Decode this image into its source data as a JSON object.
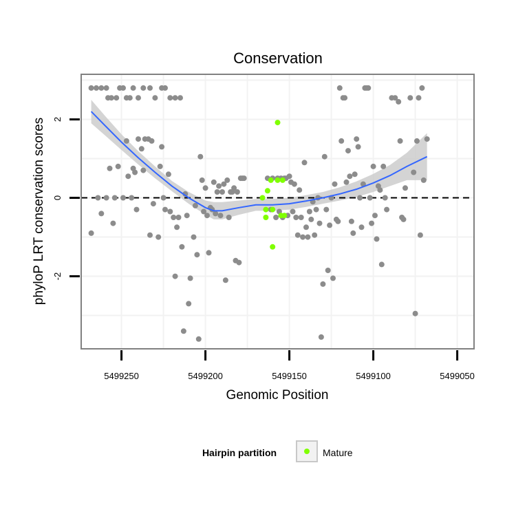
{
  "chart_data": {
    "type": "scatter",
    "title": "Conservation",
    "xlabel": "Genomic Position",
    "ylabel": "phyloP LRT conservation scores",
    "x_reversed": true,
    "xlim": [
      5499274,
      5499040
    ],
    "ylim": [
      -3.85,
      3.15
    ],
    "x_ticks": [
      5499250,
      5499200,
      5499150,
      5499100,
      5499050
    ],
    "x_tick_labels": [
      "5499250",
      "5499200",
      "5499150",
      "5499100",
      "5499050"
    ],
    "y_ticks": [
      -2,
      0,
      2
    ],
    "y_tick_labels": [
      "-2",
      "0",
      "2"
    ],
    "grid": true,
    "reference_line": {
      "y": 0,
      "style": "dashed",
      "color": "#000000"
    },
    "legend": {
      "title": "Hairpin partition",
      "position": "bottom",
      "entries": [
        "Mature"
      ]
    },
    "colors": {
      "other": "#8c8c8c",
      "mature": "#80ff00",
      "smooth": "#3366ff",
      "ribbon": "#cccccc"
    },
    "series": [
      {
        "points": [
          [
            5499268,
            2.8
          ],
          [
            5499265,
            2.8
          ],
          [
            5499262,
            2.8
          ],
          [
            5499259,
            2.8
          ],
          [
            5499258,
            2.55
          ],
          [
            5499256,
            2.55
          ],
          [
            5499253,
            2.55
          ],
          [
            5499251,
            2.8
          ],
          [
            5499249,
            2.8
          ],
          [
            5499247,
            2.55
          ],
          [
            5499245,
            2.55
          ],
          [
            5499243,
            2.8
          ],
          [
            5499240,
            2.55
          ],
          [
            5499237,
            2.8
          ],
          [
            5499233,
            2.8
          ],
          [
            5499230,
            2.55
          ],
          [
            5499226,
            2.8
          ],
          [
            5499224,
            2.8
          ],
          [
            5499221,
            2.55
          ],
          [
            5499218,
            2.55
          ],
          [
            5499215,
            2.55
          ],
          [
            5499268,
            -0.9
          ],
          [
            5499264,
            0.0
          ],
          [
            5499262,
            -0.4
          ],
          [
            5499259,
            0.0
          ],
          [
            5499257,
            0.75
          ],
          [
            5499255,
            -0.65
          ],
          [
            5499254,
            0.0
          ],
          [
            5499252,
            0.8
          ],
          [
            5499249,
            0.0
          ],
          [
            5499247,
            1.45
          ],
          [
            5499246,
            0.55
          ],
          [
            5499244,
            0.0
          ],
          [
            5499243,
            0.75
          ],
          [
            5499242,
            0.65
          ],
          [
            5499241,
            -0.3
          ],
          [
            5499240,
            1.5
          ],
          [
            5499238,
            1.25
          ],
          [
            5499237,
            0.7
          ],
          [
            5499236,
            1.5
          ],
          [
            5499234,
            1.5
          ],
          [
            5499233,
            -0.95
          ],
          [
            5499232,
            1.45
          ],
          [
            5499231,
            -0.15
          ],
          [
            5499228,
            -1.0
          ],
          [
            5499227,
            0.8
          ],
          [
            5499226,
            1.3
          ],
          [
            5499225,
            0.0
          ],
          [
            5499224,
            -0.3
          ],
          [
            5499222,
            0.6
          ],
          [
            5499221,
            -0.35
          ],
          [
            5499219,
            -0.5
          ],
          [
            5499218,
            -2.0
          ],
          [
            5499217,
            -0.75
          ],
          [
            5499216,
            -0.5
          ],
          [
            5499214,
            -1.25
          ],
          [
            5499213,
            -3.4
          ],
          [
            5499212,
            0.1
          ],
          [
            5499211,
            -0.45
          ],
          [
            5499210,
            -2.7
          ],
          [
            5499209,
            -2.05
          ],
          [
            5499207,
            -1.0
          ],
          [
            5499206,
            -0.2
          ],
          [
            5499205,
            -1.45
          ],
          [
            5499204,
            -3.6
          ],
          [
            5499203,
            1.05
          ],
          [
            5499202,
            0.45
          ],
          [
            5499201,
            -0.35
          ],
          [
            5499200,
            0.25
          ],
          [
            5499199,
            -0.45
          ],
          [
            5499198,
            -1.4
          ],
          [
            5499197,
            -0.25
          ],
          [
            5499196,
            -0.3
          ],
          [
            5499195,
            0.4
          ],
          [
            5499194,
            -0.4
          ],
          [
            5499193,
            0.15
          ],
          [
            5499192,
            0.3
          ],
          [
            5499191,
            -0.45
          ],
          [
            5499190,
            0.15
          ],
          [
            5499189,
            0.35
          ],
          [
            5499188,
            -2.1
          ],
          [
            5499187,
            0.45
          ],
          [
            5499186,
            -0.5
          ],
          [
            5499185,
            0.15
          ],
          [
            5499184,
            0.15
          ],
          [
            5499183,
            0.25
          ],
          [
            5499182,
            -1.6
          ],
          [
            5499181,
            0.15
          ],
          [
            5499180,
            -1.65
          ],
          [
            5499179,
            0.5
          ],
          [
            5499178,
            0.5
          ],
          [
            5499177,
            0.5
          ],
          [
            5499163,
            0.5
          ],
          [
            5499161,
            -0.3
          ],
          [
            5499160,
            0.5
          ],
          [
            5499158,
            -0.5
          ],
          [
            5499157,
            0.5
          ],
          [
            5499156,
            -0.35
          ],
          [
            5499155,
            0.5
          ],
          [
            5499154,
            -0.5
          ],
          [
            5499153,
            0.5
          ],
          [
            5499152,
            0.5
          ],
          [
            5499151,
            -0.45
          ],
          [
            5499150,
            0.55
          ],
          [
            5499149,
            0.4
          ],
          [
            5499148,
            -0.35
          ],
          [
            5499147,
            0.35
          ],
          [
            5499146,
            -0.5
          ],
          [
            5499145,
            -0.95
          ],
          [
            5499144,
            0.2
          ],
          [
            5499143,
            -0.5
          ],
          [
            5499142,
            -1.0
          ],
          [
            5499141,
            0.9
          ],
          [
            5499140,
            -0.75
          ],
          [
            5499139,
            -1.0
          ],
          [
            5499138,
            -0.35
          ],
          [
            5499137,
            -0.55
          ],
          [
            5499136,
            -0.1
          ],
          [
            5499135,
            -0.95
          ],
          [
            5499134,
            -0.3
          ],
          [
            5499133,
            0.0
          ],
          [
            5499132,
            -0.65
          ],
          [
            5499131,
            -3.55
          ],
          [
            5499130,
            -2.2
          ],
          [
            5499129,
            1.05
          ],
          [
            5499128,
            -0.3
          ],
          [
            5499127,
            -1.85
          ],
          [
            5499126,
            -0.7
          ],
          [
            5499125,
            0.0
          ],
          [
            5499124,
            -2.05
          ],
          [
            5499123,
            0.35
          ],
          [
            5499122,
            -0.55
          ],
          [
            5499121,
            -0.6
          ],
          [
            5499120,
            2.8
          ],
          [
            5499119,
            1.45
          ],
          [
            5499118,
            2.55
          ],
          [
            5499117,
            2.55
          ],
          [
            5499116,
            0.4
          ],
          [
            5499115,
            1.2
          ],
          [
            5499114,
            0.55
          ],
          [
            5499113,
            -0.6
          ],
          [
            5499112,
            -0.9
          ],
          [
            5499111,
            0.6
          ],
          [
            5499110,
            1.5
          ],
          [
            5499109,
            1.3
          ],
          [
            5499108,
            0.0
          ],
          [
            5499107,
            -0.75
          ],
          [
            5499106,
            0.35
          ],
          [
            5499105,
            2.8
          ],
          [
            5499104,
            2.8
          ],
          [
            5499103,
            2.8
          ],
          [
            5499102,
            0.0
          ],
          [
            5499101,
            -0.65
          ],
          [
            5499100,
            0.8
          ],
          [
            5499099,
            -0.45
          ],
          [
            5499098,
            -1.05
          ],
          [
            5499097,
            0.3
          ],
          [
            5499096,
            0.2
          ],
          [
            5499095,
            -1.7
          ],
          [
            5499094,
            0.8
          ],
          [
            5499093,
            0.0
          ],
          [
            5499092,
            -0.3
          ],
          [
            5499089,
            2.55
          ],
          [
            5499087,
            2.55
          ],
          [
            5499085,
            2.45
          ],
          [
            5499084,
            1.45
          ],
          [
            5499083,
            -0.5
          ],
          [
            5499082,
            -0.55
          ],
          [
            5499081,
            0.25
          ],
          [
            5499078,
            2.55
          ],
          [
            5499076,
            0.65
          ],
          [
            5499075,
            -2.95
          ],
          [
            5499074,
            1.45
          ],
          [
            5499073,
            2.55
          ],
          [
            5499072,
            -0.95
          ],
          [
            5499071,
            2.8
          ],
          [
            5499070,
            0.45
          ],
          [
            5499068,
            1.5
          ]
        ]
      },
      {
        "name": "Mature",
        "points": [
          [
            5499157,
            1.92
          ],
          [
            5499161,
            0.45
          ],
          [
            5499157,
            0.45
          ],
          [
            5499154,
            0.45
          ],
          [
            5499163,
            0.18
          ],
          [
            5499166,
            0.0
          ],
          [
            5499160,
            -0.3
          ],
          [
            5499164,
            -0.3
          ],
          [
            5499155,
            -0.45
          ],
          [
            5499153,
            -0.45
          ],
          [
            5499164,
            -0.5
          ],
          [
            5499160,
            -1.25
          ]
        ]
      }
    ],
    "smooth": {
      "x": [
        5499268,
        5499260,
        5499250,
        5499240,
        5499230,
        5499220,
        5499210,
        5499200,
        5499195,
        5499190,
        5499180,
        5499170,
        5499160,
        5499150,
        5499140,
        5499130,
        5499120,
        5499110,
        5499100,
        5499090,
        5499080,
        5499068
      ],
      "y": [
        2.2,
        1.85,
        1.42,
        1.02,
        0.65,
        0.3,
        0.0,
        -0.25,
        -0.33,
        -0.33,
        -0.25,
        -0.18,
        -0.18,
        -0.15,
        -0.08,
        0.0,
        0.1,
        0.22,
        0.38,
        0.57,
        0.8,
        1.05
      ],
      "lower": [
        1.9,
        1.6,
        1.22,
        0.85,
        0.5,
        0.17,
        -0.15,
        -0.43,
        -0.55,
        -0.55,
        -0.43,
        -0.33,
        -0.33,
        -0.3,
        -0.23,
        -0.15,
        -0.07,
        0.02,
        0.15,
        0.3,
        0.45,
        0.45
      ],
      "upper": [
        2.5,
        2.1,
        1.62,
        1.19,
        0.8,
        0.43,
        0.15,
        -0.07,
        -0.11,
        -0.11,
        -0.07,
        -0.03,
        -0.03,
        0.0,
        0.07,
        0.15,
        0.27,
        0.42,
        0.61,
        0.84,
        1.15,
        1.65
      ]
    }
  }
}
